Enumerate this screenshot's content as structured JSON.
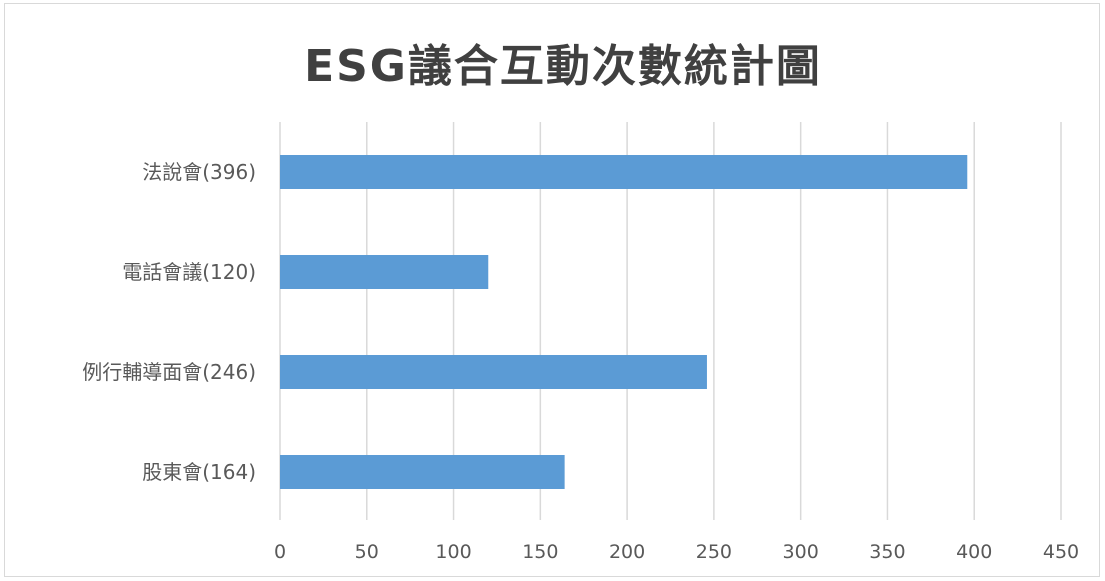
{
  "chart_data": {
    "type": "bar",
    "orientation": "horizontal",
    "title": "ESG議合互動次數統計圖",
    "categories": [
      "法說會(396)",
      "電話會議(120)",
      "例行輔導面會(246)",
      "股東會(164)"
    ],
    "values": [
      396,
      120,
      246,
      164
    ],
    "xlim": [
      0,
      450
    ],
    "x_ticks": [
      "0",
      "50",
      "100",
      "150",
      "200",
      "250",
      "300",
      "350",
      "400",
      "450"
    ],
    "xlabel": "",
    "ylabel": "",
    "grid": "vertical",
    "legend": "none",
    "bar_color": "#5b9bd5",
    "grid_color": "#d9d9d9",
    "text_color": "#595959"
  }
}
